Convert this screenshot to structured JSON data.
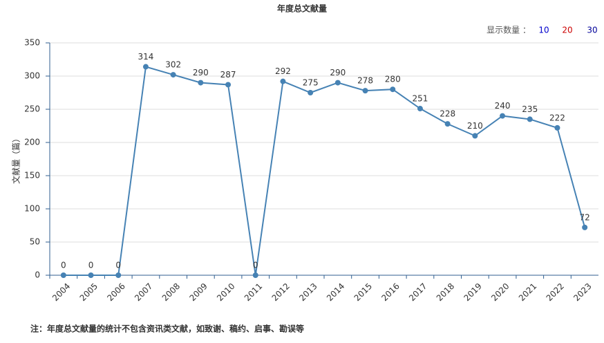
{
  "chart_data": {
    "type": "line",
    "title": "年度总文献量",
    "y_label": "文献量（篇）",
    "categories": [
      "2004",
      "2005",
      "2006",
      "2007",
      "2008",
      "2009",
      "2010",
      "2011",
      "2012",
      "2013",
      "2014",
      "2015",
      "2016",
      "2017",
      "2018",
      "2019",
      "2020",
      "2021",
      "2022",
      "2023"
    ],
    "values": [
      0,
      0,
      0,
      314,
      302,
      290,
      287,
      0,
      292,
      275,
      290,
      278,
      280,
      251,
      228,
      210,
      240,
      235,
      222,
      72
    ],
    "color": "#4682b4",
    "ylim": [
      0,
      350
    ],
    "yticks": [
      0,
      50,
      100,
      150,
      200,
      250,
      300,
      350
    ],
    "grid": true
  },
  "display_options": {
    "label": "显示数量 ：",
    "options": [
      "10",
      "20",
      "30"
    ]
  },
  "footnote": "注：年度总文献量的统计不包含资讯类文献，如致谢、稿约、启事、勘误等"
}
